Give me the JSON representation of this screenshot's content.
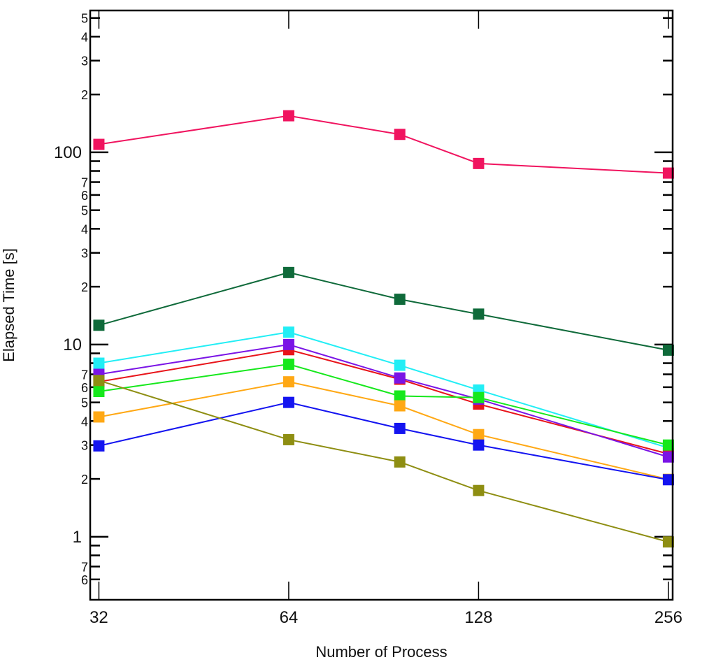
{
  "chart_data": {
    "type": "line",
    "title": "",
    "xlabel": "Number of Process",
    "ylabel": "Elapsed Time [s]",
    "xscale": "log2",
    "yscale": "log10",
    "x": [
      32,
      64,
      96,
      128,
      256
    ],
    "xticks": [
      32,
      64,
      128,
      256
    ],
    "xtick_labels": [
      "32",
      "64",
      "128",
      "256"
    ],
    "xlim": [
      31,
      260
    ],
    "ylim": [
      0.47,
      547
    ],
    "ytick_major": [
      {
        "value": 1,
        "label": "1"
      },
      {
        "value": 10,
        "label": "10"
      },
      {
        "value": 100,
        "label": "100"
      }
    ],
    "ytick_minor": [
      {
        "value": 0.6,
        "label": "6"
      },
      {
        "value": 0.7,
        "label": "7"
      },
      {
        "value": 0.8,
        "label": ""
      },
      {
        "value": 0.9,
        "label": ""
      },
      {
        "value": 2,
        "label": "2"
      },
      {
        "value": 3,
        "label": "3"
      },
      {
        "value": 4,
        "label": "4"
      },
      {
        "value": 5,
        "label": "5"
      },
      {
        "value": 6,
        "label": "6"
      },
      {
        "value": 7,
        "label": "7"
      },
      {
        "value": 8,
        "label": ""
      },
      {
        "value": 9,
        "label": ""
      },
      {
        "value": 20,
        "label": "2"
      },
      {
        "value": 30,
        "label": "3"
      },
      {
        "value": 40,
        "label": "4"
      },
      {
        "value": 50,
        "label": "5"
      },
      {
        "value": 60,
        "label": "6"
      },
      {
        "value": 70,
        "label": "7"
      },
      {
        "value": 80,
        "label": ""
      },
      {
        "value": 90,
        "label": ""
      },
      {
        "value": 200,
        "label": "2"
      },
      {
        "value": 300,
        "label": "3"
      },
      {
        "value": 400,
        "label": "4"
      },
      {
        "value": 500,
        "label": "5"
      }
    ],
    "grid": false,
    "legend": "none",
    "marker": "square",
    "series": [
      {
        "name": "magenta",
        "color": "#f0145f",
        "values": [
          110,
          155,
          124,
          87.5,
          78
        ]
      },
      {
        "name": "dark-green",
        "color": "#0f6a3a",
        "values": [
          12.6,
          23.7,
          17.2,
          14.4,
          9.35
        ]
      },
      {
        "name": "cyan",
        "color": "#22eef5",
        "values": [
          8.0,
          11.6,
          7.8,
          5.8,
          2.9
        ]
      },
      {
        "name": "red",
        "color": "#e8141a",
        "values": [
          6.4,
          9.4,
          6.6,
          4.9,
          2.7
        ]
      },
      {
        "name": "purple",
        "color": "#7a14e6",
        "values": [
          7.0,
          10.0,
          6.7,
          5.2,
          2.6
        ]
      },
      {
        "name": "green",
        "color": "#16e81c",
        "values": [
          5.7,
          7.9,
          5.4,
          5.3,
          3.0
        ]
      },
      {
        "name": "orange",
        "color": "#ffa814",
        "values": [
          4.2,
          6.4,
          4.8,
          3.4,
          1.99
        ]
      },
      {
        "name": "blue",
        "color": "#1414f0",
        "values": [
          2.97,
          5.0,
          3.66,
          3.0,
          1.98
        ]
      },
      {
        "name": "olive",
        "color": "#8e8e12",
        "values": [
          6.5,
          3.2,
          2.45,
          1.74,
          0.94
        ]
      }
    ]
  }
}
